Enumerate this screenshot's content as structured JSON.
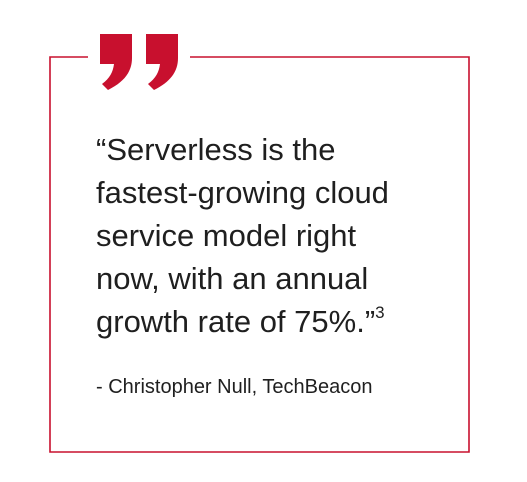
{
  "quote": {
    "lines": [
      "“Serverless is the",
      "fastest-growing cloud",
      "service model right",
      "now, with an annual",
      "growth rate of 75%.”"
    ],
    "footnote": "3"
  },
  "attribution": "- Christopher Null, TechBeacon"
}
